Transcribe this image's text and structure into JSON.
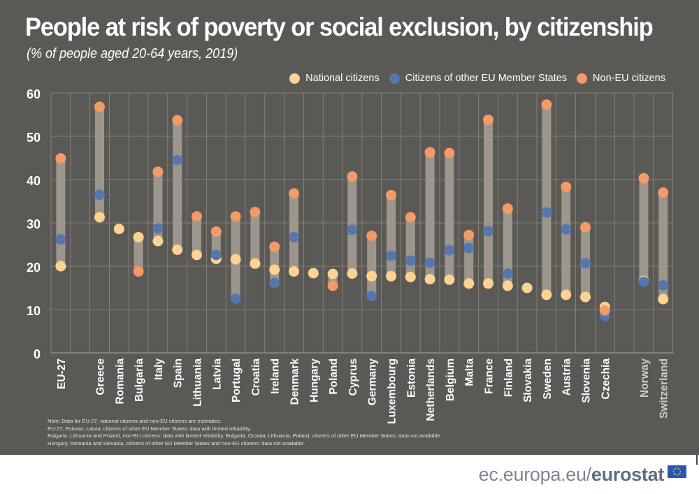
{
  "header": {
    "title": "People at risk of poverty or social exclusion, by citizenship",
    "subtitle": "(% of people aged 20-64 years, 2019)"
  },
  "legend": [
    {
      "label": "National citizens",
      "color": "#fdd394"
    },
    {
      "label": "Citizens of other EU Member States",
      "color": "#5577ac"
    },
    {
      "label": "Non-EU citizens",
      "color": "#f39a69"
    }
  ],
  "notes": [
    "Note: Data for EU-27, national citizens and non-EU citizens are estimates.",
    "EU-27, Estonia, Latvia, citizens of other EU Member States: data with limited reliability.",
    "Bulgaria, Lithuania and Poland, non-EU citizens: data with limited reliability. Bulgaria, Croatia, Lithuania, Poland, citizens of other EU Member States: data not available.",
    "Hungary, Romania and Slovakia, citizens of other EU Member States and non-EU citizens: data not available."
  ],
  "footer": {
    "url_prefix": "ec.europa.eu/",
    "url_brand": "eurostat",
    "flag_icon": "eu-flag-icon"
  },
  "colors": {
    "background": "#5b5955",
    "range_bar": "#9d968d",
    "grid": "#8e8b86",
    "non_member_label": "#cfcac3"
  },
  "chart_data": {
    "type": "dot-range",
    "title": "People at risk of poverty or social exclusion, by citizenship",
    "subtitle": "(% of people aged 20-64 years, 2019)",
    "xlabel": "",
    "ylabel": "",
    "ylim": [
      0,
      60
    ],
    "yticks": [
      0,
      10,
      20,
      30,
      40,
      50,
      60
    ],
    "grid": true,
    "legend_position": "top-right",
    "categories": [
      "EU-27",
      "",
      "Greece",
      "Romania",
      "Bulgaria",
      "Italy",
      "Spain",
      "Lithuania",
      "Latvia",
      "Portugal",
      "Croatia",
      "Ireland",
      "Denmark",
      "Hungary",
      "Poland",
      "Cyprus",
      "Germany",
      "Luxembourg",
      "Estonia",
      "Netherlands",
      "Belgium",
      "Malta",
      "France",
      "Finland",
      "Slovakia",
      "Sweden",
      "Austria",
      "Slovenia",
      "Czechia",
      "",
      "Norway",
      "Switzerland"
    ],
    "non_eu_member_categories": [
      "Norway",
      "Switzerland"
    ],
    "series": [
      {
        "name": "National citizens",
        "color": "#fdd394",
        "values": [
          20.0,
          null,
          31.3,
          28.6,
          26.7,
          25.8,
          23.8,
          22.6,
          21.7,
          21.6,
          20.6,
          19.2,
          18.8,
          18.4,
          18.2,
          18.3,
          17.7,
          17.7,
          17.5,
          17.0,
          16.9,
          16.0,
          16.0,
          15.5,
          15.0,
          13.4,
          13.4,
          12.9,
          10.6,
          null,
          16.6,
          12.4
        ]
      },
      {
        "name": "Citizens of other EU Member States",
        "color": "#5577ac",
        "values": [
          26.2,
          null,
          36.5,
          null,
          null,
          28.7,
          44.5,
          null,
          22.6,
          12.5,
          null,
          16.1,
          26.7,
          null,
          null,
          28.4,
          13.1,
          22.4,
          21.3,
          20.8,
          23.7,
          24.2,
          28.1,
          18.3,
          null,
          32.4,
          28.5,
          20.7,
          8.5,
          null,
          16.4,
          15.6
        ]
      },
      {
        "name": "Non-EU citizens",
        "color": "#f39a69",
        "values": [
          44.9,
          null,
          56.8,
          null,
          18.8,
          41.8,
          53.7,
          31.5,
          28.0,
          31.5,
          32.5,
          24.5,
          36.8,
          null,
          15.5,
          40.7,
          27.0,
          36.4,
          31.3,
          46.3,
          46.1,
          27.2,
          53.8,
          33.3,
          null,
          57.3,
          38.3,
          29.0,
          9.8,
          null,
          40.3,
          37.0
        ]
      }
    ]
  }
}
